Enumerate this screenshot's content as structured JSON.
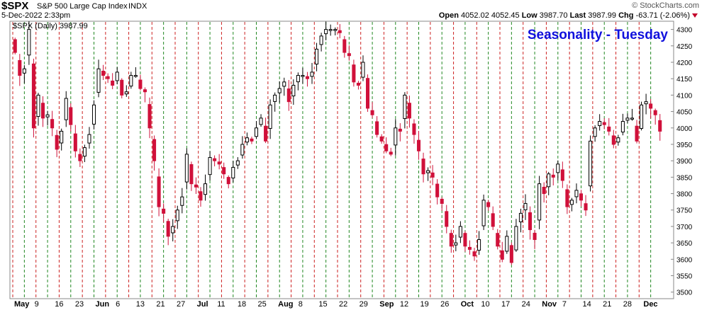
{
  "header": {
    "symbol": "$SPX",
    "description": "S&P 500 Large Cap Index",
    "exchange": "INDX",
    "credit": "© StockCharts.com",
    "date": "5-Dec-2022 2:33pm",
    "open_label": "Open",
    "open": "4052.02",
    "high": "4052.45",
    "low_label": "Low",
    "low": "3987.70",
    "last_label": "Last",
    "last": "3987.99",
    "chg_label": "Chg",
    "chg": "-63.71 (-2.06%)"
  },
  "legend": "$SPX (Daily) 3987.99",
  "overlay_title": "Seasonality - Tuesday",
  "colors": {
    "up": "#000000",
    "down": "#d0103a",
    "tuesday_line": "#cc2222",
    "other_line": "#228822",
    "title": "#1010dd"
  },
  "chart_data": {
    "type": "candlestick",
    "ylim": [
      3480,
      4325
    ],
    "yticks": [
      3500,
      3550,
      3600,
      3650,
      3700,
      3750,
      3800,
      3850,
      3900,
      3950,
      4000,
      4050,
      4100,
      4150,
      4200,
      4250,
      4300
    ],
    "xtick_labels": [
      "May",
      "9",
      "16",
      "23",
      "Jun",
      "6",
      "13",
      "21",
      "27",
      "Jul",
      "11",
      "18",
      "25",
      "Aug",
      "8",
      "15",
      "22",
      "29",
      "Sep",
      "12",
      "19",
      "26",
      "Oct",
      "10",
      "17",
      "24",
      "Nov",
      "7",
      "14",
      "21",
      "28",
      "Dec"
    ],
    "bold_month_labels": [
      "May",
      "Jun",
      "Jul",
      "Aug",
      "Sep",
      "Oct",
      "Nov",
      "Dec"
    ],
    "grid": "vertical dashed lines on weekly boundaries, red marks Tuesdays, green other weekdays",
    "close_start": 4290,
    "closes": [
      4230,
      4160,
      4180,
      4300,
      4000,
      4100,
      4030,
      4040,
      4000,
      3935,
      3990,
      4090,
      4010,
      3930,
      3900,
      3940,
      3980,
      4070,
      4180,
      4160,
      4150,
      4130,
      4170,
      4100,
      4110,
      4160,
      4160,
      4120,
      4110,
      4000,
      3900,
      3760,
      3740,
      3670,
      3700,
      3750,
      3790,
      3920,
      3830,
      3820,
      3780,
      3830,
      3910,
      3900,
      3890,
      3860,
      3830,
      3880,
      3900,
      3950,
      3970,
      3960,
      4000,
      4030,
      3960,
      4070,
      4100,
      4120,
      4140,
      4080,
      4130,
      4160,
      4160,
      4150,
      4170,
      4240,
      4280,
      4300,
      4300,
      4300,
      4290,
      4230,
      4220,
      4140,
      4130,
      4200,
      4060,
      4040,
      3980,
      3960,
      3930,
      3920,
      4000,
      3990,
      4100,
      4030,
      3980,
      3930,
      3860,
      3870,
      3850,
      3790,
      3770,
      3700,
      3640,
      3650,
      3700,
      3640,
      3630,
      3610,
      3660,
      3780,
      3760,
      3700,
      3640,
      3600,
      3670,
      3590,
      3700,
      3740,
      3770,
      3690,
      3660,
      3830,
      3800,
      3860,
      3850,
      3890,
      3840,
      3760,
      3780,
      3810,
      3780,
      3750,
      3960,
      4000,
      4020,
      4010,
      3990,
      3950,
      3970,
      4020,
      4030,
      4030,
      3960,
      4070,
      4080,
      4060,
      4040,
      3990
    ]
  }
}
